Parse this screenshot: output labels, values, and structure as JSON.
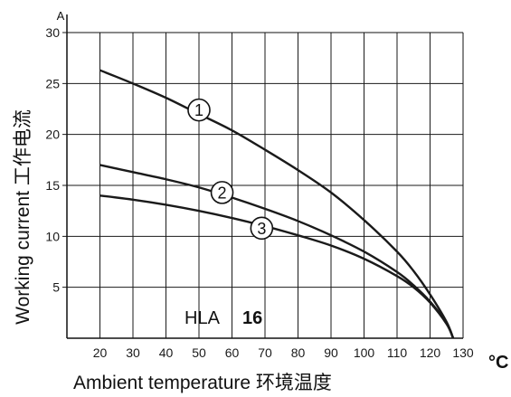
{
  "chart_data": {
    "type": "line",
    "xlabel": "Ambient temperature  环境温度",
    "ylabel": "Working current  工作电流",
    "x_unit": "°C",
    "y_unit": "A",
    "xlim": [
      10,
      130
    ],
    "ylim": [
      0,
      30
    ],
    "x_ticks": [
      20,
      30,
      40,
      50,
      60,
      70,
      80,
      90,
      100,
      110,
      120,
      130
    ],
    "y_ticks": [
      5,
      10,
      15,
      20,
      25,
      30
    ],
    "grid": true,
    "model_label": "HLA",
    "model_number": "16",
    "series": [
      {
        "name": "1",
        "x": [
          20,
          30,
          40,
          50,
          60,
          70,
          80,
          90,
          100,
          110,
          115,
          120,
          125,
          127
        ],
        "y": [
          26.3,
          25.0,
          23.6,
          22.0,
          20.4,
          18.5,
          16.5,
          14.3,
          11.6,
          8.5,
          6.6,
          4.3,
          1.6,
          0
        ]
      },
      {
        "name": "2",
        "x": [
          20,
          30,
          40,
          50,
          60,
          70,
          80,
          90,
          100,
          110,
          115,
          120,
          125,
          127
        ],
        "y": [
          17.0,
          16.3,
          15.6,
          14.8,
          13.8,
          12.7,
          11.5,
          10.1,
          8.5,
          6.5,
          5.2,
          3.6,
          1.5,
          0
        ]
      },
      {
        "name": "3",
        "x": [
          20,
          30,
          40,
          50,
          60,
          70,
          80,
          90,
          100,
          110,
          115,
          120,
          125,
          127
        ],
        "y": [
          14.0,
          13.6,
          13.1,
          12.5,
          11.8,
          11.0,
          10.1,
          9.1,
          7.8,
          6.1,
          5.0,
          3.5,
          1.4,
          0
        ]
      }
    ],
    "curve_markers": [
      {
        "label": "1",
        "x": 50,
        "y": 22.4
      },
      {
        "label": "2",
        "x": 57,
        "y": 14.3
      },
      {
        "label": "3",
        "x": 69,
        "y": 10.8
      }
    ]
  }
}
